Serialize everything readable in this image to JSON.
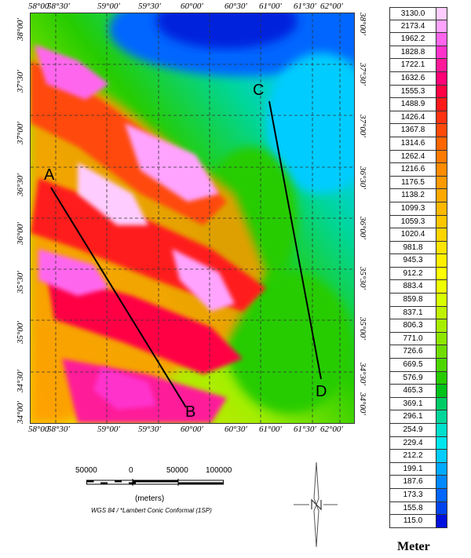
{
  "map": {
    "top_ticks": [
      "58°00'",
      "58°30'",
      "59°00'",
      "59°30'",
      "60°00'",
      "60°30'",
      "61°00'",
      "61°30'",
      "62°00'"
    ],
    "bottom_ticks": [
      "58°00'",
      "58°30'",
      "59°00'",
      "59°30'",
      "60°00'",
      "60°30'",
      "61°00'",
      "61°30'",
      "62°00'"
    ],
    "left_ticks": [
      "38°00'",
      "37°30'",
      "37°00'",
      "36°30'",
      "36°00'",
      "35°30'",
      "35°00'",
      "34°30'",
      "34°00'"
    ],
    "right_ticks": [
      "38°00'",
      "37°30'",
      "37°00'",
      "36°30'",
      "36°00'",
      "35°30'",
      "35°00'",
      "34°30'",
      "34°00'"
    ],
    "profiles": [
      {
        "label_start": "A",
        "label_end": "B"
      },
      {
        "label_start": "C",
        "label_end": "D"
      }
    ]
  },
  "legend": {
    "unit": "Meter",
    "entries": [
      {
        "value": "3130.0",
        "color": "#ffccff"
      },
      {
        "value": "2173.4",
        "color": "#ffa3ff"
      },
      {
        "value": "1962.2",
        "color": "#ff66ee"
      },
      {
        "value": "1828.8",
        "color": "#ff33cc"
      },
      {
        "value": "1722.1",
        "color": "#ff1a99"
      },
      {
        "value": "1632.6",
        "color": "#ff0077"
      },
      {
        "value": "1555.3",
        "color": "#ff0044"
      },
      {
        "value": "1488.9",
        "color": "#ff1a1a"
      },
      {
        "value": "1426.4",
        "color": "#ff3311"
      },
      {
        "value": "1367.8",
        "color": "#ff4a0a"
      },
      {
        "value": "1314.6",
        "color": "#ff6600"
      },
      {
        "value": "1262.4",
        "color": "#ff7a00"
      },
      {
        "value": "1216.6",
        "color": "#ff8c00"
      },
      {
        "value": "1176.5",
        "color": "#ff9900"
      },
      {
        "value": "1138.2",
        "color": "#ffa800"
      },
      {
        "value": "1099.3",
        "color": "#ffb800"
      },
      {
        "value": "1059.3",
        "color": "#ffc600"
      },
      {
        "value": "1020.4",
        "color": "#ffd400"
      },
      {
        "value": "981.8",
        "color": "#ffe400"
      },
      {
        "value": "945.3",
        "color": "#fff000"
      },
      {
        "value": "912.2",
        "color": "#ffff00"
      },
      {
        "value": "883.4",
        "color": "#eeff00"
      },
      {
        "value": "859.8",
        "color": "#d8ff00"
      },
      {
        "value": "837.1",
        "color": "#bff200"
      },
      {
        "value": "806.3",
        "color": "#a6ee00"
      },
      {
        "value": "771.0",
        "color": "#8ce600"
      },
      {
        "value": "726.6",
        "color": "#6fdd00"
      },
      {
        "value": "669.5",
        "color": "#4cd600"
      },
      {
        "value": "576.9",
        "color": "#26cc00"
      },
      {
        "value": "465.3",
        "color": "#00c21a"
      },
      {
        "value": "369.1",
        "color": "#00cc66"
      },
      {
        "value": "296.1",
        "color": "#00d699"
      },
      {
        "value": "254.9",
        "color": "#00e0cc"
      },
      {
        "value": "229.4",
        "color": "#00e6ee"
      },
      {
        "value": "212.2",
        "color": "#00ccff"
      },
      {
        "value": "199.1",
        "color": "#00aaff"
      },
      {
        "value": "187.6",
        "color": "#0088ff"
      },
      {
        "value": "173.3",
        "color": "#0066ff"
      },
      {
        "value": "155.8",
        "color": "#0044ee"
      },
      {
        "value": "115.0",
        "color": "#0011dd"
      }
    ]
  },
  "scalebar": {
    "labels": [
      "50000",
      "0",
      "50000",
      "100000"
    ],
    "units": "(meters)"
  },
  "projection": "WGS 84 / *Lambert Conic Conformal (1SP)"
}
